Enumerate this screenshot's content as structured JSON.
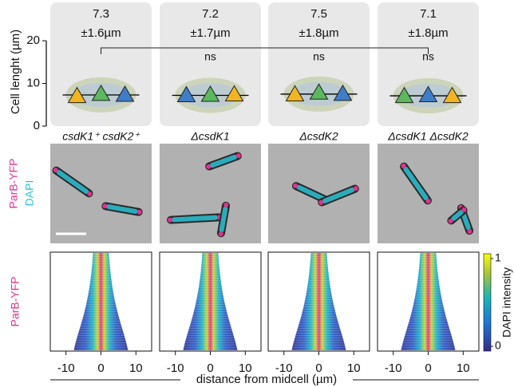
{
  "chart_data": [
    {
      "type": "swarm",
      "ylabel": "Cell lenght (µm)",
      "categories": [
        "csdK1⁺ csdK2⁺",
        "ΔcsdK1",
        "ΔcsdK2",
        "ΔcsdK1 ΔcsdK2"
      ],
      "values": [
        7.3,
        7.2,
        7.5,
        7.1
      ],
      "sd_labels": [
        "±1.6µm",
        "±1.7µm",
        "±1.8µm",
        "±1.8µm"
      ],
      "significance_labels": [
        null,
        "ns",
        "ns",
        "ns"
      ],
      "replicates": [
        {
          "colors": [
            "#f2b51f",
            "#5bb85d",
            "#3f7dc8"
          ],
          "values": [
            7.0,
            7.5,
            7.3
          ]
        },
        {
          "colors": [
            "#3f7dc8",
            "#5bb85d",
            "#f2b51f"
          ],
          "values": [
            7.2,
            7.3,
            7.4
          ]
        },
        {
          "colors": [
            "#f2b51f",
            "#5bb85d",
            "#3f7dc8"
          ],
          "values": [
            7.4,
            7.8,
            7.5
          ]
        },
        {
          "colors": [
            "#5bb85d",
            "#3f7dc8",
            "#f2b51f"
          ],
          "values": [
            7.0,
            7.2,
            7.0
          ]
        }
      ],
      "ylim": [
        0,
        29
      ],
      "yticks": [
        0,
        10,
        20
      ]
    },
    {
      "type": "image",
      "labels": [
        "ParB-YFP",
        "DAPI"
      ],
      "label_colors": [
        "#e0358f",
        "#2cc3d6"
      ]
    },
    {
      "type": "demograph",
      "ylabel": "ParB-YFP",
      "ylabel_color": "#e0358f",
      "xlabel": "distance from midcell (µm)",
      "xlim": [
        -14.5,
        14.5
      ],
      "xticks": [
        -10,
        0,
        10
      ],
      "colorbar": {
        "label": "DAPI intensity",
        "lim": [
          0,
          1
        ],
        "ticks": [
          0,
          1
        ]
      }
    }
  ]
}
